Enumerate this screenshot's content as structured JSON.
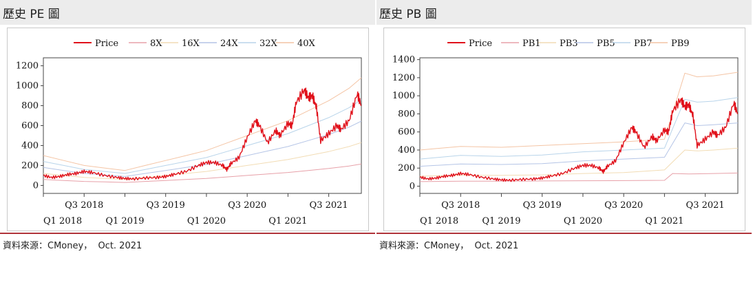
{
  "panels": [
    {
      "title": "歷史 PE 圖",
      "source": "資料來源：CMoney，  Oct. 2021"
    },
    {
      "title": "歷史 PB 圖",
      "source": "資料來源：CMoney，  Oct. 2021"
    }
  ],
  "chart_data": [
    {
      "type": "line",
      "title": "",
      "xlabel": "",
      "ylabel": "",
      "legend_position": "top",
      "grid": false,
      "ylim": [
        -80,
        1280
      ],
      "yticks": [
        0,
        200,
        400,
        600,
        800,
        1000,
        1200
      ],
      "xlim": [
        2018.0,
        2021.9
      ],
      "xticks_upper": [
        {
          "x": 2018.5,
          "label": "Q3 2018"
        },
        {
          "x": 2019.5,
          "label": "Q3 2019"
        },
        {
          "x": 2020.5,
          "label": "Q3 2020"
        },
        {
          "x": 2021.5,
          "label": "Q3 2021"
        }
      ],
      "xticks_lower": [
        {
          "x": 2018.0,
          "label": "Q1 2018"
        },
        {
          "x": 2019.0,
          "label": "Q1 2019"
        },
        {
          "x": 2020.0,
          "label": "Q1 2020"
        },
        {
          "x": 2021.0,
          "label": "Q1 2021"
        }
      ],
      "series": [
        {
          "name": "Price",
          "color": "#e0101a",
          "width": 1.4,
          "x": [
            2018.0,
            2018.1,
            2018.2,
            2018.3,
            2018.4,
            2018.5,
            2018.6,
            2018.75,
            2018.9,
            2019.0,
            2019.1,
            2019.25,
            2019.4,
            2019.5,
            2019.6,
            2019.75,
            2019.9,
            2020.0,
            2020.1,
            2020.2,
            2020.25,
            2020.3,
            2020.4,
            2020.5,
            2020.6,
            2020.65,
            2020.75,
            2020.85,
            2020.9,
            2021.0,
            2021.05,
            2021.1,
            2021.2,
            2021.25,
            2021.3,
            2021.35,
            2021.4,
            2021.5,
            2021.6,
            2021.65,
            2021.75,
            2021.85,
            2021.9
          ],
          "values": [
            100,
            80,
            90,
            110,
            120,
            140,
            130,
            100,
            80,
            70,
            65,
            75,
            80,
            90,
            110,
            140,
            200,
            230,
            230,
            200,
            160,
            220,
            280,
            480,
            650,
            600,
            430,
            550,
            500,
            620,
            600,
            830,
            960,
            880,
            900,
            780,
            450,
            520,
            600,
            560,
            650,
            920,
            800
          ]
        },
        {
          "name": "8X",
          "color": "#e7a0a8",
          "width": 1,
          "x": [
            2018.0,
            2018.25,
            2018.5,
            2018.75,
            2019.0,
            2019.25,
            2019.5,
            2019.75,
            2020.0,
            2020.25,
            2020.5,
            2020.75,
            2021.0,
            2021.25,
            2021.5,
            2021.75,
            2021.9
          ],
          "values": [
            60,
            50,
            40,
            35,
            30,
            40,
            50,
            60,
            70,
            85,
            100,
            115,
            130,
            150,
            170,
            195,
            215
          ]
        },
        {
          "name": "16X",
          "color": "#f2dcb4",
          "width": 1,
          "x": [
            2018.0,
            2018.25,
            2018.5,
            2018.75,
            2019.0,
            2019.25,
            2019.5,
            2019.75,
            2020.0,
            2020.25,
            2020.5,
            2020.75,
            2021.0,
            2021.25,
            2021.5,
            2021.75,
            2021.9
          ],
          "values": [
            120,
            100,
            80,
            70,
            60,
            80,
            100,
            120,
            140,
            170,
            200,
            230,
            260,
            300,
            340,
            390,
            430
          ]
        },
        {
          "name": "24X",
          "color": "#b4c4e6",
          "width": 1,
          "x": [
            2018.0,
            2018.25,
            2018.5,
            2018.75,
            2019.0,
            2019.25,
            2019.5,
            2019.75,
            2020.0,
            2020.25,
            2020.5,
            2020.75,
            2021.0,
            2021.25,
            2021.5,
            2021.75,
            2021.9
          ],
          "values": [
            180,
            150,
            120,
            105,
            90,
            120,
            150,
            180,
            210,
            255,
            300,
            345,
            390,
            450,
            510,
            585,
            645
          ]
        },
        {
          "name": "32X",
          "color": "#b8d4ea",
          "width": 1,
          "x": [
            2018.0,
            2018.25,
            2018.5,
            2018.75,
            2019.0,
            2019.25,
            2019.5,
            2019.75,
            2020.0,
            2020.25,
            2020.5,
            2020.75,
            2021.0,
            2021.25,
            2021.5,
            2021.75,
            2021.9
          ],
          "values": [
            240,
            200,
            160,
            140,
            120,
            160,
            200,
            240,
            280,
            340,
            400,
            460,
            520,
            600,
            680,
            780,
            860
          ]
        },
        {
          "name": "40X",
          "color": "#f4c4a4",
          "width": 1,
          "x": [
            2018.0,
            2018.25,
            2018.5,
            2018.75,
            2019.0,
            2019.25,
            2019.5,
            2019.75,
            2020.0,
            2020.25,
            2020.5,
            2020.75,
            2021.0,
            2021.25,
            2021.5,
            2021.75,
            2021.9
          ],
          "values": [
            300,
            250,
            200,
            175,
            150,
            200,
            250,
            300,
            350,
            425,
            500,
            575,
            650,
            750,
            850,
            975,
            1080
          ]
        }
      ]
    },
    {
      "type": "line",
      "title": "",
      "xlabel": "",
      "ylabel": "",
      "legend_position": "top",
      "grid": false,
      "ylim": [
        -80,
        1420
      ],
      "yticks": [
        0,
        200,
        400,
        600,
        800,
        1000,
        1200,
        1400
      ],
      "xlim": [
        2018.0,
        2021.9
      ],
      "xticks_upper": [
        {
          "x": 2018.5,
          "label": "Q3 2018"
        },
        {
          "x": 2019.5,
          "label": "Q3 2019"
        },
        {
          "x": 2020.5,
          "label": "Q3 2020"
        },
        {
          "x": 2021.5,
          "label": "Q3 2021"
        }
      ],
      "xticks_lower": [
        {
          "x": 2018.0,
          "label": "Q1 2018"
        },
        {
          "x": 2019.0,
          "label": "Q1 2019"
        },
        {
          "x": 2020.0,
          "label": "Q1 2020"
        },
        {
          "x": 2021.0,
          "label": "Q1 2021"
        }
      ],
      "series": [
        {
          "name": "Price",
          "color": "#e0101a",
          "width": 1.4,
          "x": [
            2018.0,
            2018.1,
            2018.2,
            2018.3,
            2018.4,
            2018.5,
            2018.6,
            2018.75,
            2018.9,
            2019.0,
            2019.1,
            2019.25,
            2019.4,
            2019.5,
            2019.6,
            2019.75,
            2019.9,
            2020.0,
            2020.1,
            2020.2,
            2020.25,
            2020.3,
            2020.4,
            2020.5,
            2020.6,
            2020.65,
            2020.75,
            2020.85,
            2020.9,
            2021.0,
            2021.05,
            2021.1,
            2021.2,
            2021.25,
            2021.3,
            2021.35,
            2021.4,
            2021.5,
            2021.6,
            2021.65,
            2021.75,
            2021.85,
            2021.9
          ],
          "values": [
            100,
            80,
            90,
            110,
            120,
            140,
            130,
            100,
            80,
            70,
            65,
            75,
            80,
            90,
            110,
            140,
            200,
            230,
            230,
            200,
            160,
            220,
            280,
            480,
            650,
            600,
            430,
            550,
            500,
            620,
            600,
            830,
            960,
            880,
            900,
            780,
            450,
            520,
            600,
            560,
            650,
            920,
            800
          ]
        },
        {
          "name": "PB1",
          "color": "#e7a0a8",
          "width": 1,
          "x": [
            2018.0,
            2018.5,
            2019.0,
            2019.5,
            2020.0,
            2020.5,
            2021.0,
            2021.1,
            2021.3,
            2021.6,
            2021.9
          ],
          "values": [
            50,
            55,
            55,
            58,
            60,
            62,
            65,
            140,
            135,
            140,
            145
          ]
        },
        {
          "name": "PB3",
          "color": "#f2dcb4",
          "width": 1,
          "x": [
            2018.0,
            2018.5,
            2019.0,
            2019.5,
            2020.0,
            2020.5,
            2021.0,
            2021.25,
            2021.4,
            2021.6,
            2021.9
          ],
          "values": [
            110,
            120,
            120,
            125,
            140,
            150,
            180,
            400,
            390,
            400,
            420
          ]
        },
        {
          "name": "PB5",
          "color": "#b4c4e6",
          "width": 1,
          "x": [
            2018.0,
            2018.5,
            2019.0,
            2019.5,
            2020.0,
            2020.5,
            2021.0,
            2021.25,
            2021.4,
            2021.6,
            2021.9
          ],
          "values": [
            220,
            245,
            240,
            250,
            280,
            300,
            320,
            700,
            670,
            680,
            700
          ]
        },
        {
          "name": "PB7",
          "color": "#b8d4ea",
          "width": 1,
          "x": [
            2018.0,
            2018.5,
            2019.0,
            2019.5,
            2020.0,
            2020.5,
            2021.0,
            2021.25,
            2021.4,
            2021.6,
            2021.9
          ],
          "values": [
            300,
            340,
            330,
            345,
            380,
            400,
            420,
            960,
            930,
            940,
            980
          ]
        },
        {
          "name": "PB9",
          "color": "#f4c4a4",
          "width": 1,
          "x": [
            2018.0,
            2018.5,
            2019.0,
            2019.5,
            2020.0,
            2020.5,
            2021.0,
            2021.25,
            2021.4,
            2021.6,
            2021.9
          ],
          "values": [
            400,
            440,
            430,
            450,
            470,
            490,
            520,
            1250,
            1210,
            1220,
            1260
          ]
        }
      ]
    }
  ]
}
